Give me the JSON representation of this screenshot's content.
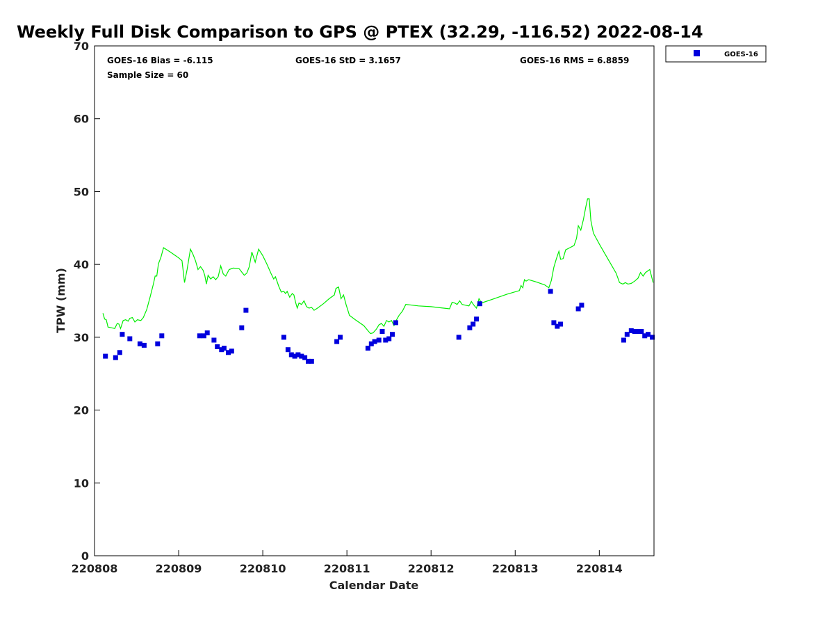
{
  "chart_data": {
    "type": "scatter",
    "title": "Weekly Full Disk Comparison to GPS @ PTEX (32.29, -116.52) 2022-08-14",
    "xlabel": "Calendar Date",
    "ylabel": "TPW (mm)",
    "xlim": [
      0,
      6.65
    ],
    "ylim": [
      0,
      70
    ],
    "yticks": [
      0,
      10,
      20,
      30,
      40,
      50,
      60,
      70
    ],
    "xticks": [
      {
        "value": 0,
        "label": "220808"
      },
      {
        "value": 1,
        "label": "220809"
      },
      {
        "value": 2,
        "label": "220810"
      },
      {
        "value": 3,
        "label": "220811"
      },
      {
        "value": 4,
        "label": "220812"
      },
      {
        "value": 5,
        "label": "220813"
      },
      {
        "value": 6,
        "label": "220814"
      }
    ],
    "stats": {
      "bias": "GOES-16 Bias = -6.115",
      "std": "GOES-16 StD = 3.1657",
      "rms": "GOES-16 RMS = 6.8859",
      "sample": "Sample Size = 60"
    },
    "legend": {
      "label": "GOES-16",
      "position": "top-right-outside"
    },
    "colors": {
      "goes": "#0000dd",
      "gps": "#00ee00"
    },
    "series": [
      {
        "name": "GOES-16",
        "style": "square-marker",
        "points": [
          [
            0.13,
            27.4
          ],
          [
            0.25,
            27.2
          ],
          [
            0.3,
            27.9
          ],
          [
            0.33,
            30.4
          ],
          [
            0.42,
            29.8
          ],
          [
            0.54,
            29.1
          ],
          [
            0.59,
            28.9
          ],
          [
            0.75,
            29.1
          ],
          [
            0.8,
            30.2
          ],
          [
            1.25,
            30.2
          ],
          [
            1.3,
            30.2
          ],
          [
            1.34,
            30.6
          ],
          [
            1.42,
            29.6
          ],
          [
            1.46,
            28.7
          ],
          [
            1.51,
            28.3
          ],
          [
            1.54,
            28.5
          ],
          [
            1.59,
            27.9
          ],
          [
            1.63,
            28.1
          ],
          [
            1.75,
            31.3
          ],
          [
            1.8,
            33.7
          ],
          [
            2.25,
            30.0
          ],
          [
            2.3,
            28.3
          ],
          [
            2.34,
            27.6
          ],
          [
            2.38,
            27.4
          ],
          [
            2.42,
            27.6
          ],
          [
            2.46,
            27.4
          ],
          [
            2.5,
            27.2
          ],
          [
            2.54,
            26.7
          ],
          [
            2.58,
            26.7
          ],
          [
            2.88,
            29.4
          ],
          [
            2.92,
            30.0
          ],
          [
            3.25,
            28.5
          ],
          [
            3.29,
            29.1
          ],
          [
            3.33,
            29.4
          ],
          [
            3.38,
            29.6
          ],
          [
            3.42,
            30.8
          ],
          [
            3.46,
            29.6
          ],
          [
            3.5,
            29.8
          ],
          [
            3.54,
            30.4
          ],
          [
            3.58,
            32.0
          ],
          [
            4.33,
            30.0
          ],
          [
            4.46,
            31.3
          ],
          [
            4.5,
            31.8
          ],
          [
            4.54,
            32.5
          ],
          [
            4.58,
            34.6
          ],
          [
            5.42,
            36.3
          ],
          [
            5.46,
            32.0
          ],
          [
            5.5,
            31.5
          ],
          [
            5.54,
            31.8
          ],
          [
            5.75,
            33.9
          ],
          [
            5.79,
            34.4
          ],
          [
            6.29,
            29.6
          ],
          [
            6.33,
            30.4
          ],
          [
            6.38,
            30.9
          ],
          [
            6.42,
            30.8
          ],
          [
            6.46,
            30.8
          ],
          [
            6.5,
            30.8
          ],
          [
            6.54,
            30.2
          ],
          [
            6.58,
            30.4
          ],
          [
            6.63,
            30.0
          ]
        ]
      },
      {
        "name": "GPS",
        "style": "line",
        "points": [
          [
            0.1,
            33.3
          ],
          [
            0.12,
            32.5
          ],
          [
            0.14,
            32.4
          ],
          [
            0.16,
            31.4
          ],
          [
            0.2,
            31.3
          ],
          [
            0.24,
            31.2
          ],
          [
            0.27,
            31.9
          ],
          [
            0.29,
            31.8
          ],
          [
            0.31,
            31.2
          ],
          [
            0.34,
            32.3
          ],
          [
            0.37,
            32.4
          ],
          [
            0.4,
            32.2
          ],
          [
            0.42,
            32.6
          ],
          [
            0.45,
            32.7
          ],
          [
            0.48,
            32.1
          ],
          [
            0.51,
            32.4
          ],
          [
            0.55,
            32.3
          ],
          [
            0.58,
            32.7
          ],
          [
            0.62,
            33.8
          ],
          [
            0.66,
            35.5
          ],
          [
            0.7,
            37.3
          ],
          [
            0.72,
            38.4
          ],
          [
            0.74,
            38.4
          ],
          [
            0.76,
            40.1
          ],
          [
            0.79,
            41.0
          ],
          [
            0.82,
            42.3
          ],
          [
            0.9,
            41.7
          ],
          [
            1.0,
            40.9
          ],
          [
            1.04,
            40.5
          ],
          [
            1.07,
            37.5
          ],
          [
            1.1,
            39.3
          ],
          [
            1.14,
            42.1
          ],
          [
            1.17,
            41.4
          ],
          [
            1.2,
            40.5
          ],
          [
            1.23,
            39.3
          ],
          [
            1.26,
            39.7
          ],
          [
            1.29,
            39.2
          ],
          [
            1.31,
            38.5
          ],
          [
            1.33,
            37.3
          ],
          [
            1.35,
            38.5
          ],
          [
            1.38,
            38.0
          ],
          [
            1.41,
            38.3
          ],
          [
            1.44,
            37.9
          ],
          [
            1.47,
            38.3
          ],
          [
            1.5,
            39.8
          ],
          [
            1.53,
            38.7
          ],
          [
            1.56,
            38.4
          ],
          [
            1.6,
            39.3
          ],
          [
            1.65,
            39.5
          ],
          [
            1.72,
            39.4
          ],
          [
            1.76,
            38.8
          ],
          [
            1.78,
            38.5
          ],
          [
            1.81,
            38.8
          ],
          [
            1.84,
            39.7
          ],
          [
            1.87,
            41.7
          ],
          [
            1.91,
            40.3
          ],
          [
            1.95,
            42.1
          ],
          [
            2.0,
            41.2
          ],
          [
            2.05,
            40.0
          ],
          [
            2.1,
            38.7
          ],
          [
            2.13,
            38.0
          ],
          [
            2.15,
            38.3
          ],
          [
            2.19,
            37.0
          ],
          [
            2.22,
            36.2
          ],
          [
            2.25,
            36.3
          ],
          [
            2.27,
            36.0
          ],
          [
            2.29,
            36.3
          ],
          [
            2.32,
            35.5
          ],
          [
            2.35,
            36.0
          ],
          [
            2.37,
            35.8
          ],
          [
            2.39,
            34.8
          ],
          [
            2.41,
            34.0
          ],
          [
            2.43,
            34.7
          ],
          [
            2.46,
            34.5
          ],
          [
            2.49,
            35.0
          ],
          [
            2.52,
            34.2
          ],
          [
            2.55,
            34.0
          ],
          [
            2.58,
            34.1
          ],
          [
            2.61,
            33.7
          ],
          [
            2.65,
            34.0
          ],
          [
            2.72,
            34.6
          ],
          [
            2.79,
            35.3
          ],
          [
            2.85,
            35.8
          ],
          [
            2.87,
            36.7
          ],
          [
            2.9,
            36.9
          ],
          [
            2.93,
            35.3
          ],
          [
            2.96,
            35.8
          ],
          [
            2.99,
            34.5
          ],
          [
            3.03,
            33.0
          ],
          [
            3.1,
            32.4
          ],
          [
            3.2,
            31.6
          ],
          [
            3.25,
            30.9
          ],
          [
            3.28,
            30.5
          ],
          [
            3.31,
            30.6
          ],
          [
            3.35,
            31.1
          ],
          [
            3.38,
            31.7
          ],
          [
            3.41,
            31.9
          ],
          [
            3.44,
            31.5
          ],
          [
            3.47,
            32.3
          ],
          [
            3.5,
            32.1
          ],
          [
            3.53,
            32.3
          ],
          [
            3.56,
            31.6
          ],
          [
            3.59,
            32.4
          ],
          [
            3.62,
            33.0
          ],
          [
            3.66,
            33.6
          ],
          [
            3.7,
            34.5
          ],
          [
            3.85,
            34.3
          ],
          [
            4.0,
            34.2
          ],
          [
            4.15,
            34.0
          ],
          [
            4.22,
            33.9
          ],
          [
            4.25,
            34.8
          ],
          [
            4.28,
            34.7
          ],
          [
            4.31,
            34.5
          ],
          [
            4.34,
            35.0
          ],
          [
            4.37,
            34.5
          ],
          [
            4.41,
            34.4
          ],
          [
            4.45,
            34.3
          ],
          [
            4.48,
            34.9
          ],
          [
            4.51,
            34.4
          ],
          [
            4.54,
            34.0
          ],
          [
            4.57,
            35.3
          ],
          [
            4.6,
            34.7
          ],
          [
            4.75,
            35.3
          ],
          [
            4.9,
            35.9
          ],
          [
            5.05,
            36.4
          ],
          [
            5.07,
            37.1
          ],
          [
            5.09,
            36.8
          ],
          [
            5.11,
            37.9
          ],
          [
            5.13,
            37.7
          ],
          [
            5.16,
            37.9
          ],
          [
            5.25,
            37.6
          ],
          [
            5.35,
            37.2
          ],
          [
            5.4,
            36.8
          ],
          [
            5.43,
            37.8
          ],
          [
            5.46,
            39.6
          ],
          [
            5.49,
            40.8
          ],
          [
            5.52,
            41.8
          ],
          [
            5.54,
            40.7
          ],
          [
            5.57,
            40.8
          ],
          [
            5.6,
            42.0
          ],
          [
            5.65,
            42.3
          ],
          [
            5.7,
            42.6
          ],
          [
            5.73,
            43.6
          ],
          [
            5.75,
            45.3
          ],
          [
            5.78,
            44.7
          ],
          [
            5.81,
            46.1
          ],
          [
            5.84,
            47.9
          ],
          [
            5.86,
            49.0
          ],
          [
            5.88,
            49.0
          ],
          [
            5.9,
            46.0
          ],
          [
            5.93,
            44.3
          ],
          [
            6.0,
            42.8
          ],
          [
            6.1,
            40.8
          ],
          [
            6.2,
            38.8
          ],
          [
            6.24,
            37.5
          ],
          [
            6.28,
            37.3
          ],
          [
            6.31,
            37.5
          ],
          [
            6.34,
            37.3
          ],
          [
            6.38,
            37.4
          ],
          [
            6.42,
            37.7
          ],
          [
            6.46,
            38.1
          ],
          [
            6.49,
            38.9
          ],
          [
            6.52,
            38.4
          ],
          [
            6.55,
            38.9
          ],
          [
            6.6,
            39.3
          ],
          [
            6.64,
            37.5
          ]
        ]
      }
    ]
  }
}
